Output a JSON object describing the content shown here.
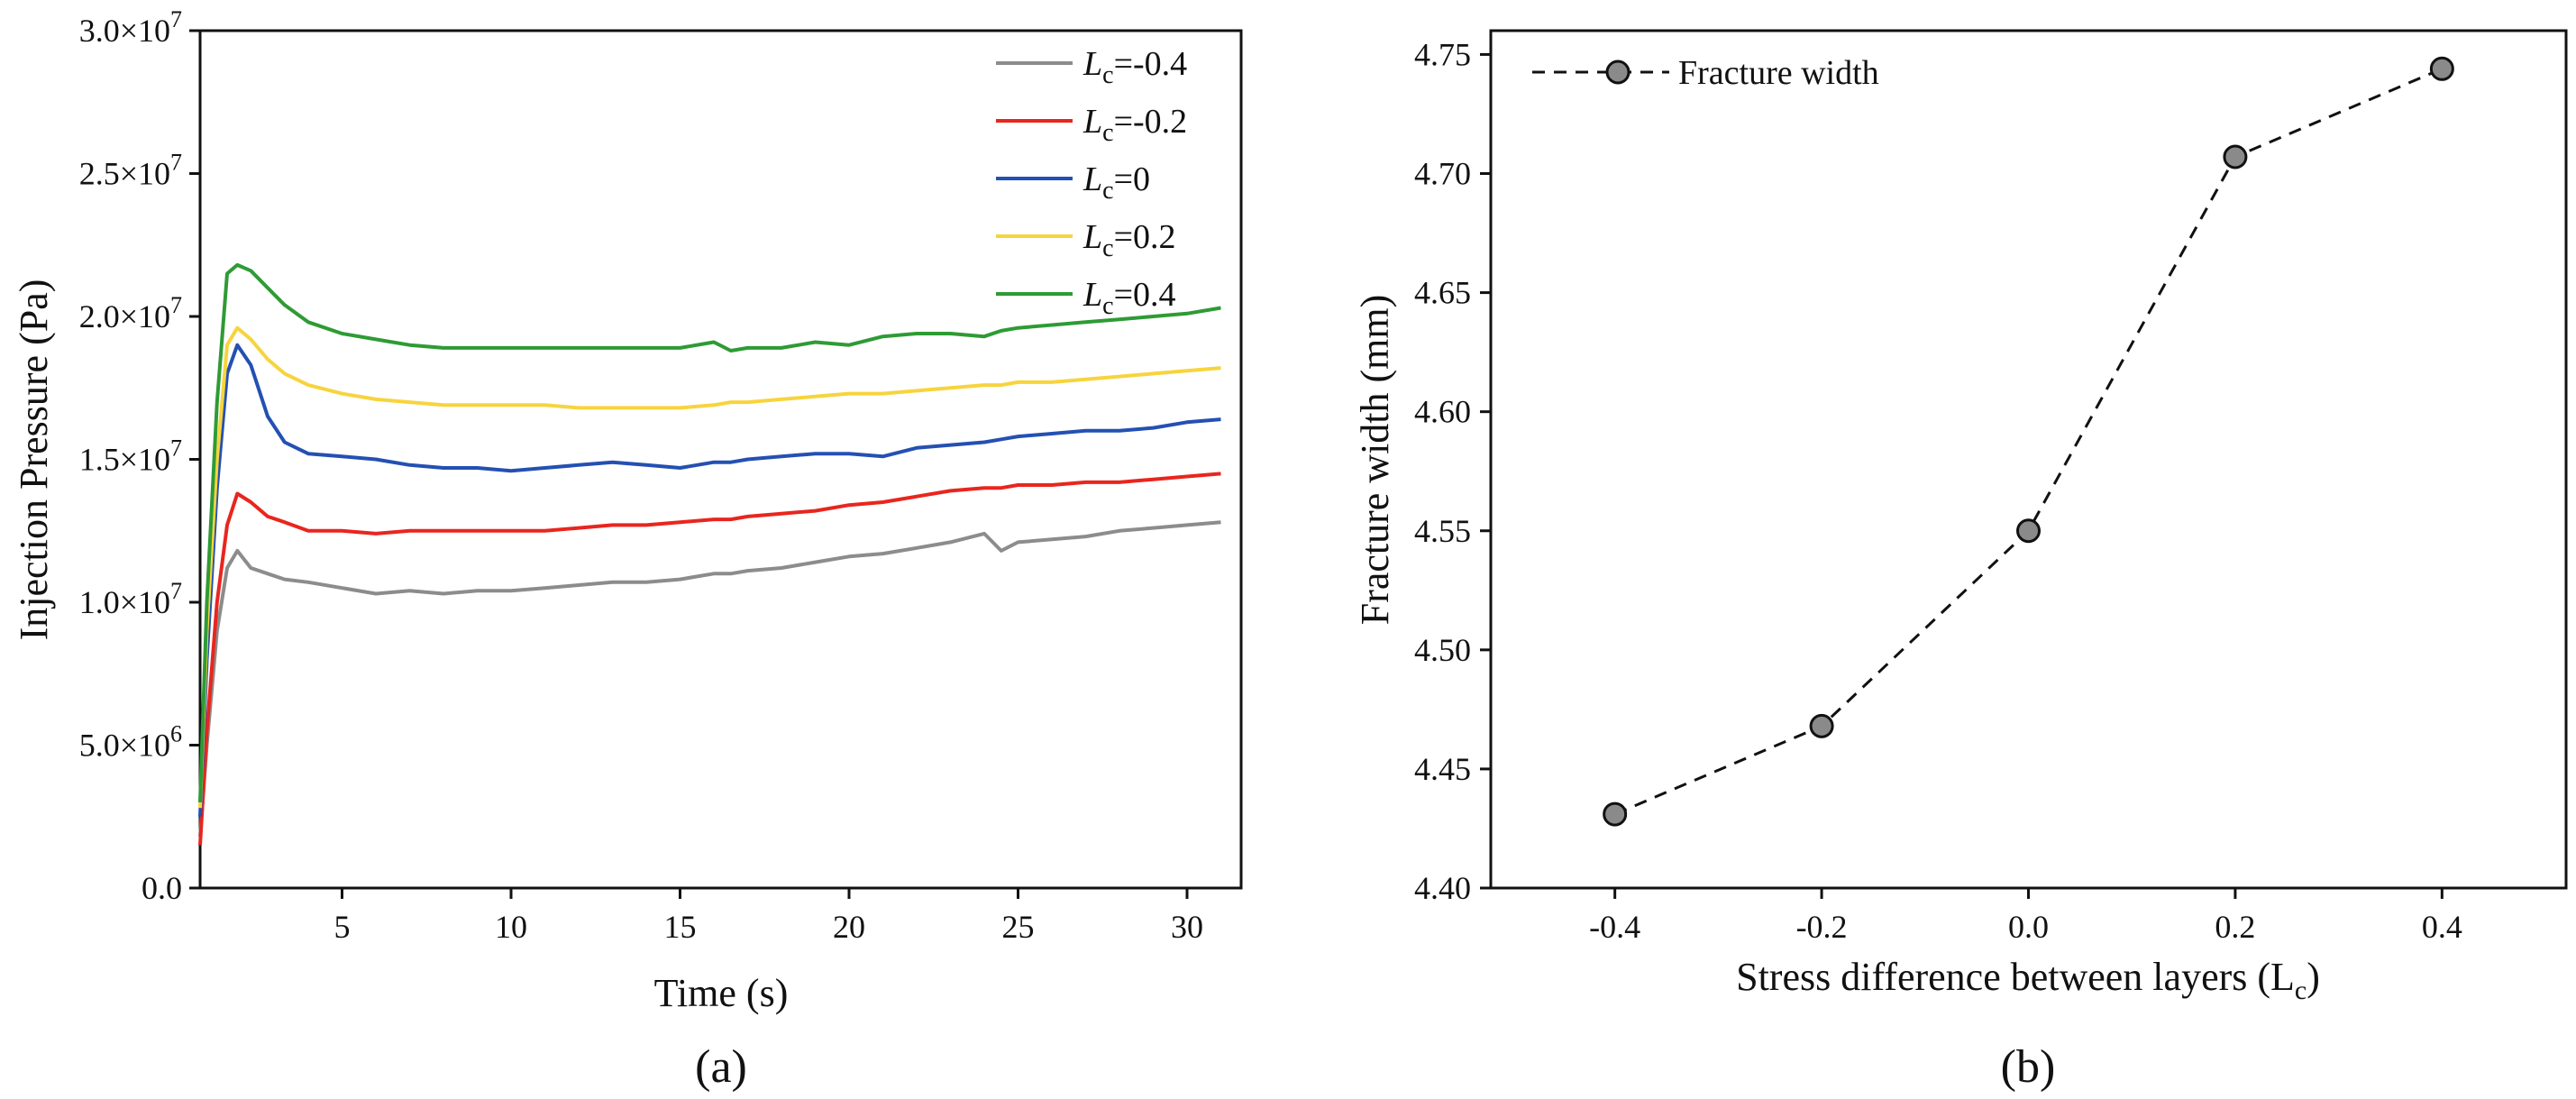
{
  "chart_data": [
    {
      "type": "line",
      "caption": "(a)",
      "xlabel": "Time (s)",
      "ylabel": "Injection Pressure (Pa)",
      "xlim": [
        0.8,
        31.6
      ],
      "ylim": [
        0,
        30000000
      ],
      "xticks": [
        5,
        10,
        15,
        20,
        25,
        30
      ],
      "xtick_labels": [
        "5",
        "10",
        "15",
        "20",
        "25",
        "30"
      ],
      "yticks": [
        0,
        5000000,
        10000000,
        15000000,
        20000000,
        25000000,
        30000000
      ],
      "ytick_labels": [
        {
          "m": "0.0",
          "e": ""
        },
        {
          "m": "5.0×10",
          "e": "6"
        },
        {
          "m": "1.0×10",
          "e": "7"
        },
        {
          "m": "1.5×10",
          "e": "7"
        },
        {
          "m": "2.0×10",
          "e": "7"
        },
        {
          "m": "2.5×10",
          "e": "7"
        },
        {
          "m": "3.0×10",
          "e": "7"
        }
      ],
      "grid": false,
      "legend_position": "top-right",
      "x": [
        0.8,
        1.0,
        1.3,
        1.6,
        1.9,
        2.3,
        2.8,
        3.3,
        4.0,
        5.0,
        6.0,
        7.0,
        8.0,
        9.0,
        10.0,
        11.0,
        12.0,
        13.0,
        14.0,
        15.0,
        16.0,
        16.5,
        17.0,
        18.0,
        19.0,
        20.0,
        21.0,
        22.0,
        23.0,
        24.0,
        24.5,
        25.0,
        26.0,
        27.0,
        28.0,
        29.0,
        30.0,
        31.0
      ],
      "series": [
        {
          "name": "L",
          "sub": "c",
          "suffix": "=-0.4",
          "color": "#8c8c8c",
          "values": [
            1800000,
            5000000,
            9000000,
            11200000,
            11800000,
            11200000,
            11000000,
            10800000,
            10700000,
            10500000,
            10300000,
            10400000,
            10300000,
            10400000,
            10400000,
            10500000,
            10600000,
            10700000,
            10700000,
            10800000,
            11000000,
            11000000,
            11100000,
            11200000,
            11400000,
            11600000,
            11700000,
            11900000,
            12100000,
            12400000,
            11800000,
            12100000,
            12200000,
            12300000,
            12500000,
            12600000,
            12700000,
            12800000
          ]
        },
        {
          "name": "L",
          "sub": "c",
          "suffix": "=-0.2",
          "color": "#e8261e",
          "values": [
            1500000,
            5500000,
            10000000,
            12700000,
            13800000,
            13500000,
            13000000,
            12800000,
            12500000,
            12500000,
            12400000,
            12500000,
            12500000,
            12500000,
            12500000,
            12500000,
            12600000,
            12700000,
            12700000,
            12800000,
            12900000,
            12900000,
            13000000,
            13100000,
            13200000,
            13400000,
            13500000,
            13700000,
            13900000,
            14000000,
            14000000,
            14100000,
            14100000,
            14200000,
            14200000,
            14300000,
            14400000,
            14500000
          ]
        },
        {
          "name": "L",
          "sub": "c",
          "suffix": "=0",
          "color": "#2450b2",
          "values": [
            2500000,
            8000000,
            14000000,
            18000000,
            19000000,
            18300000,
            16500000,
            15600000,
            15200000,
            15100000,
            15000000,
            14800000,
            14700000,
            14700000,
            14600000,
            14700000,
            14800000,
            14900000,
            14800000,
            14700000,
            14900000,
            14900000,
            15000000,
            15100000,
            15200000,
            15200000,
            15100000,
            15400000,
            15500000,
            15600000,
            15700000,
            15800000,
            15900000,
            16000000,
            16000000,
            16100000,
            16300000,
            16400000
          ]
        },
        {
          "name": "L",
          "sub": "c",
          "suffix": "=0.2",
          "color": "#f7d43e",
          "values": [
            2800000,
            9000000,
            15000000,
            19000000,
            19600000,
            19200000,
            18500000,
            18000000,
            17600000,
            17300000,
            17100000,
            17000000,
            16900000,
            16900000,
            16900000,
            16900000,
            16800000,
            16800000,
            16800000,
            16800000,
            16900000,
            17000000,
            17000000,
            17100000,
            17200000,
            17300000,
            17300000,
            17400000,
            17500000,
            17600000,
            17600000,
            17700000,
            17700000,
            17800000,
            17900000,
            18000000,
            18100000,
            18200000
          ]
        },
        {
          "name": "L",
          "sub": "c",
          "suffix": "=0.4",
          "color": "#2e9b34",
          "values": [
            3000000,
            10000000,
            17000000,
            21500000,
            21800000,
            21600000,
            21000000,
            20400000,
            19800000,
            19400000,
            19200000,
            19000000,
            18900000,
            18900000,
            18900000,
            18900000,
            18900000,
            18900000,
            18900000,
            18900000,
            19100000,
            18800000,
            18900000,
            18900000,
            19100000,
            19000000,
            19300000,
            19400000,
            19400000,
            19300000,
            19500000,
            19600000,
            19700000,
            19800000,
            19900000,
            20000000,
            20100000,
            20300000
          ]
        }
      ]
    },
    {
      "type": "line",
      "caption": "(b)",
      "xlabel": "Stress difference between layers (L",
      "xlabel_sub": "c",
      "xlabel_end": ")",
      "ylabel": "Fracture width (mm)",
      "xlim": [
        -0.52,
        0.52
      ],
      "ylim": [
        4.4,
        4.76
      ],
      "xticks": [
        -0.4,
        -0.2,
        0.0,
        0.2,
        0.4
      ],
      "xtick_labels": [
        "-0.4",
        "-0.2",
        "0.0",
        "0.2",
        "0.4"
      ],
      "yticks": [
        4.4,
        4.45,
        4.5,
        4.55,
        4.6,
        4.65,
        4.7,
        4.75
      ],
      "ytick_labels": [
        "4.40",
        "4.45",
        "4.50",
        "4.55",
        "4.60",
        "4.65",
        "4.70",
        "4.75"
      ],
      "grid": false,
      "legend_position": "top-left",
      "series": [
        {
          "name": "Fracture width",
          "color": "#8a8a8a",
          "line": "dashed",
          "marker": "circle",
          "x": [
            -0.4,
            -0.2,
            0.0,
            0.2,
            0.4
          ],
          "values": [
            4.431,
            4.468,
            4.55,
            4.707,
            4.744
          ]
        }
      ]
    }
  ]
}
